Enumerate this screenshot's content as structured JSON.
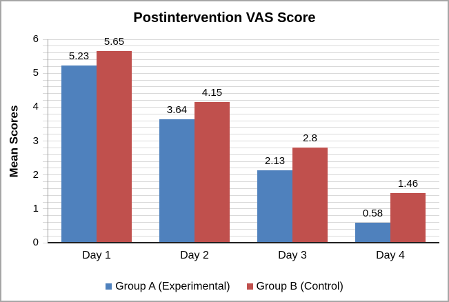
{
  "chart_data": {
    "type": "bar",
    "title": "Postintervention VAS Score",
    "xlabel": "",
    "ylabel": "Mean Scores",
    "categories": [
      "Day 1",
      "Day 2",
      "Day 3",
      "Day 4"
    ],
    "series": [
      {
        "name": "Group A (Experimental)",
        "color": "#4F81BD",
        "values": [
          5.23,
          3.64,
          2.13,
          0.58
        ]
      },
      {
        "name": "Group B (Control)",
        "color": "#C0504D",
        "values": [
          5.65,
          4.15,
          2.8,
          1.46
        ]
      }
    ],
    "ylim": [
      0,
      6
    ],
    "major_unit": 1,
    "minor_unit": 0.2,
    "y_tick_labels": [
      "0",
      "1",
      "2",
      "3",
      "4",
      "5",
      "6"
    ],
    "grid": true,
    "data_labels": true,
    "legend_position": "bottom"
  },
  "colors": {
    "gridline": "#D9D9D9",
    "value_axis_line": "#9A9A9A",
    "category_axis_line": "#1F1F1F",
    "chart_border": "#A6A6A6",
    "background": "#FFFFFF",
    "text": "#000000"
  }
}
